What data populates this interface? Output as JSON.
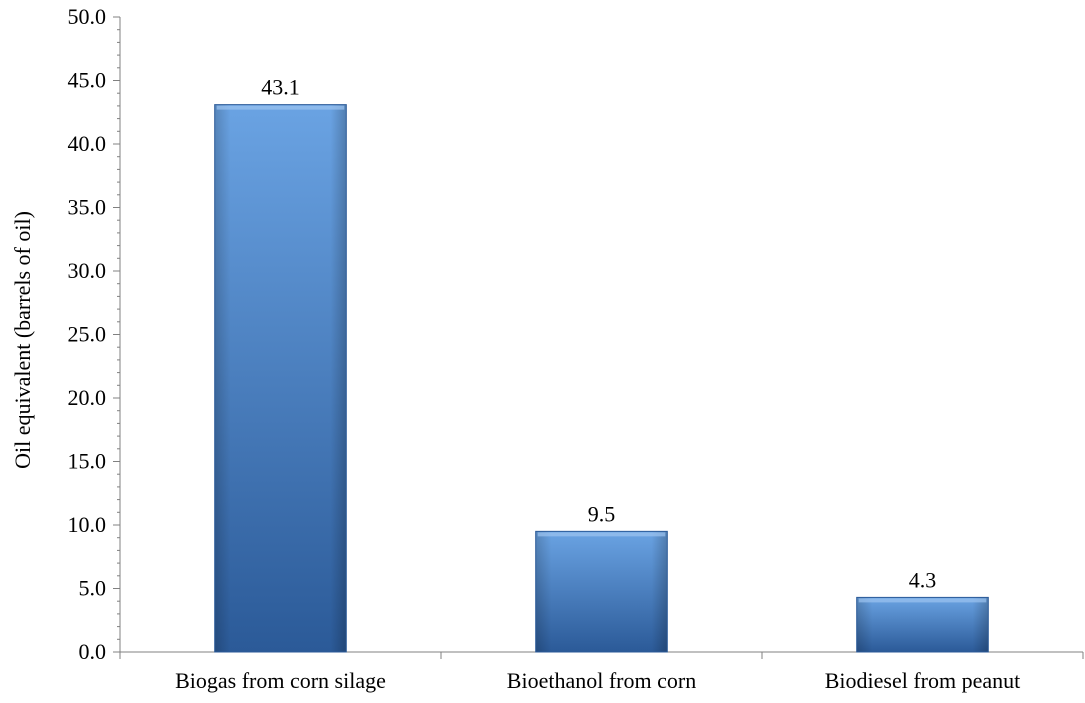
{
  "chart_data": {
    "type": "bar",
    "title": "",
    "xlabel": "",
    "ylabel": "Oil equivalent (barrels of oil)",
    "categories": [
      "Biogas from corn silage",
      "Bioethanol from corn",
      "Biodiesel from peanut"
    ],
    "series": [
      {
        "values": [
          43.1,
          9.5,
          4.3
        ],
        "data_labels": [
          "43.1",
          "9.5",
          "4.3"
        ]
      }
    ],
    "ylim": [
      0,
      50
    ],
    "y_major_step": 5,
    "y_minor_step": 1,
    "y_tick_labels": [
      "0.0",
      "5.0",
      "10.0",
      "15.0",
      "20.0",
      "25.0",
      "30.0",
      "35.0",
      "40.0",
      "45.0",
      "50.0"
    ],
    "grid": false,
    "legend": "none",
    "bar_color": "#3d7cc9",
    "bar_color_dark": "#2b5a98",
    "bar_color_light": "#6aa3e3"
  }
}
